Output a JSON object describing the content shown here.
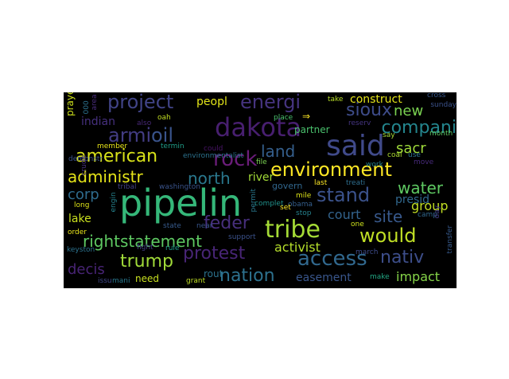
{
  "wordcloud": {
    "words": [
      {
        "text": "pipelin",
        "color": "#35b779"
      },
      {
        "text": "said",
        "color": "#404a8a"
      },
      {
        "text": "tribe",
        "color": "#a5db36"
      },
      {
        "text": "dakota",
        "color": "#481f70"
      },
      {
        "text": "environment",
        "color": "#fde725"
      },
      {
        "text": "access",
        "color": "#31688e"
      },
      {
        "text": "rock",
        "color": "#6b1d7a"
      },
      {
        "text": "american",
        "color": "#d8e219"
      },
      {
        "text": "stand",
        "color": "#3b528b"
      },
      {
        "text": "oil",
        "color": "#3a548c"
      },
      {
        "text": "armi",
        "color": "#433d84"
      },
      {
        "text": "would",
        "color": "#c0df25"
      },
      {
        "text": "project",
        "color": "#414487"
      },
      {
        "text": "energi",
        "color": "#463480"
      },
      {
        "text": "sioux",
        "color": "#3e4c8a"
      },
      {
        "text": "compani",
        "color": "#24868e"
      },
      {
        "text": "nativ",
        "color": "#3d4e8a"
      },
      {
        "text": "protest",
        "color": "#482576"
      },
      {
        "text": "trump",
        "color": "#a0da39"
      },
      {
        "text": "nation",
        "color": "#2d718e"
      },
      {
        "text": "feder",
        "color": "#472f7d"
      },
      {
        "text": "administr",
        "color": "#e5e419"
      },
      {
        "text": "north",
        "color": "#2a788e"
      },
      {
        "text": "site",
        "color": "#38598c"
      },
      {
        "text": "water",
        "color": "#5ec962"
      },
      {
        "text": "rightstatement",
        "color": "#5ec962"
      },
      {
        "text": "land",
        "color": "#355f8d"
      },
      {
        "text": "new",
        "color": "#7ad151"
      },
      {
        "text": "sacr",
        "color": "#9fda3a"
      },
      {
        "text": "corp",
        "color": "#2f6c8e"
      },
      {
        "text": "decis",
        "color": "#482475"
      },
      {
        "text": "impact",
        "color": "#86d549"
      },
      {
        "text": "activist",
        "color": "#b5de2b"
      },
      {
        "text": "court",
        "color": "#33638d"
      },
      {
        "text": "group",
        "color": "#c2df23"
      },
      {
        "text": "presid",
        "color": "#31688e"
      },
      {
        "text": "river",
        "color": "#a2da37"
      },
      {
        "text": "easement",
        "color": "#39568c"
      },
      {
        "text": "peopl",
        "color": "#e2e418"
      },
      {
        "text": "construct",
        "color": "#e5e419"
      },
      {
        "text": "indian",
        "color": "#46307e"
      },
      {
        "text": "lake",
        "color": "#cae11f"
      },
      {
        "text": "partner",
        "color": "#4ac16d"
      },
      {
        "text": "need",
        "color": "#c8e020"
      },
      {
        "text": "rout",
        "color": "#2c738e"
      },
      {
        "text": "prayer",
        "color": "#cde11d"
      },
      {
        "text": "govern",
        "color": "#31678e"
      },
      {
        "text": "washington",
        "color": "#3a548c"
      },
      {
        "text": "obama",
        "color": "#355f8d"
      },
      {
        "text": "mile",
        "color": "#dde318"
      },
      {
        "text": "complet",
        "color": "#21918c"
      },
      {
        "text": "permit",
        "color": "#2a788e"
      },
      {
        "text": "file",
        "color": "#7ad151"
      },
      {
        "text": "could",
        "color": "#481467"
      },
      {
        "text": "termin",
        "color": "#1f9e89"
      },
      {
        "text": "member",
        "color": "#e7e419"
      },
      {
        "text": "environmentalist",
        "color": "#2c728e"
      },
      {
        "text": "place",
        "color": "#4ac16d"
      },
      {
        "text": "take",
        "color": "#b8de29"
      },
      {
        "text": "cross",
        "color": "#38588c"
      },
      {
        "text": "sunday",
        "color": "#3b528b"
      },
      {
        "text": "month",
        "color": "#5ec962"
      },
      {
        "text": "say",
        "color": "#a5db36"
      },
      {
        "text": "reserv",
        "color": "#453581"
      },
      {
        "text": "treati",
        "color": "#2e6e8e"
      },
      {
        "text": "last",
        "color": "#fde725"
      },
      {
        "text": "stop",
        "color": "#26828e"
      },
      {
        "text": "set",
        "color": "#fde725"
      },
      {
        "text": "coal",
        "color": "#addc30"
      },
      {
        "text": "use",
        "color": "#2c738e"
      },
      {
        "text": "work",
        "color": "#26828e"
      },
      {
        "text": "move",
        "color": "#472a7a"
      },
      {
        "text": "camp",
        "color": "#31688e"
      },
      {
        "text": "day",
        "color": "#433e85"
      },
      {
        "text": "one",
        "color": "#cde11d"
      },
      {
        "text": "march",
        "color": "#3e4c8a"
      },
      {
        "text": "make",
        "color": "#22a884"
      },
      {
        "text": "transfer",
        "color": "#375a8c"
      },
      {
        "text": "state",
        "color": "#375b8d"
      },
      {
        "text": "near",
        "color": "#39568c"
      },
      {
        "text": "rule",
        "color": "#1e9b8a"
      },
      {
        "text": "fight",
        "color": "#433e85"
      },
      {
        "text": "support",
        "color": "#3b528b"
      },
      {
        "text": "grant",
        "color": "#c0df25"
      },
      {
        "text": "mani",
        "color": "#2a788e"
      },
      {
        "text": "issu",
        "color": "#3f4889"
      },
      {
        "text": "order",
        "color": "#eae51a"
      },
      {
        "text": "keyston",
        "color": "#2c728e"
      },
      {
        "text": "long",
        "color": "#dde318"
      },
      {
        "text": "engin",
        "color": "#26828e"
      },
      {
        "text": "tribal",
        "color": "#424086"
      },
      {
        "text": "demonstr",
        "color": "#3b528b"
      },
      {
        "text": "crude",
        "color": "#46307e"
      },
      {
        "text": "also",
        "color": "#482878"
      },
      {
        "text": "oah",
        "color": "#c2df23"
      },
      {
        "text": "area",
        "color": "#472c7a"
      },
      {
        "text": "000",
        "color": "#2c728e"
      },
      {
        "text": "⇒",
        "color": "#fde725"
      }
    ]
  }
}
